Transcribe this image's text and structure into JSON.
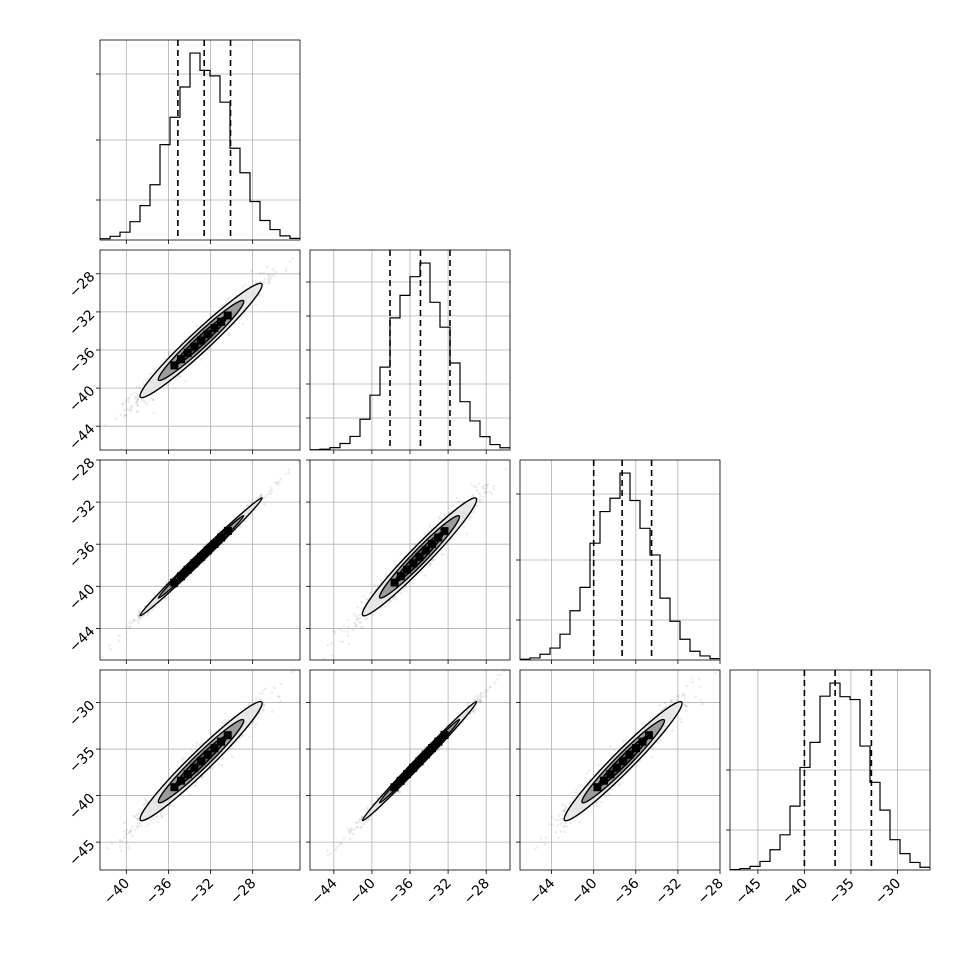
{
  "chart_data": {
    "type": "corner",
    "n_params": 4,
    "grid": true,
    "colors": {
      "line": "#000000",
      "grid": "#b0b0b0",
      "fill_dark": "#444444",
      "fill_mid": "#8a8a8a",
      "fill_light": "#e6e6e6"
    },
    "params": [
      {
        "range": [
          -42.5,
          -23.5
        ],
        "ticks": [
          -40,
          -36,
          -32,
          -28
        ],
        "tick_labels": [
          "−40",
          "−36",
          "−32",
          "−28"
        ],
        "center": -32.9,
        "sigma": 2.9,
        "quantiles": [
          -35.1,
          -32.6,
          -30.1
        ]
      },
      {
        "range": [
          -46.5,
          -25.5
        ],
        "ticks": [
          -44,
          -40,
          -36,
          -32,
          -28
        ],
        "tick_labels": [
          "−44",
          "−40",
          "−36",
          "−32",
          "−28"
        ],
        "center": -35.0,
        "sigma": 3.0,
        "quantiles": [
          -38.1,
          -34.9,
          -31.8
        ]
      },
      {
        "range": [
          -47.0,
          -28.0
        ],
        "ticks": [
          -44,
          -40,
          -36,
          -32,
          -28
        ],
        "tick_labels": [
          "−44",
          "−40",
          "−36",
          "−32",
          "−28"
        ],
        "center": -37.2,
        "sigma": 2.8,
        "quantiles": [
          -40.0,
          -37.3,
          -34.5
        ]
      },
      {
        "range": [
          -48.0,
          -26.5
        ],
        "ticks": [
          -45,
          -40,
          -35,
          -30
        ],
        "tick_labels": [
          "−45",
          "−40",
          "−35",
          "−30"
        ],
        "center": -36.3,
        "sigma": 3.2,
        "quantiles": [
          -40.0,
          -36.7,
          -32.8
        ]
      }
    ],
    "x_axis_params": [
      0,
      1,
      2,
      3
    ],
    "y_axis_params": [
      1,
      2,
      3
    ],
    "correlations": {
      "1-0": 0.97,
      "2-0": 0.995,
      "2-1": 0.97,
      "3-0": 0.97,
      "3-1": 0.995,
      "3-2": 0.97
    }
  }
}
